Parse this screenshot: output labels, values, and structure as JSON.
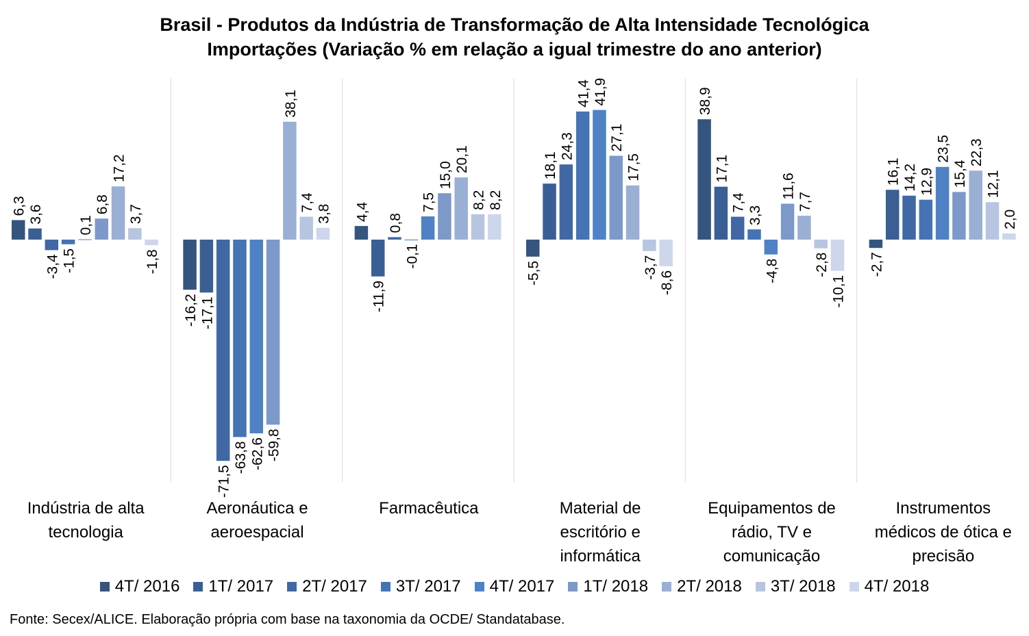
{
  "chart_data": {
    "type": "bar",
    "title": "Brasil - Produtos da Indústria de Transformação de Alta Intensidade Tecnológica",
    "subtitle": "Importações (Variação % em relação a igual trimestre do ano anterior)",
    "categories": [
      "Indústria de alta tecnologia",
      "Aeronáutica e aeroespacial",
      "Farmacêutica",
      "Material de escritório e informática",
      "Equipamentos de rádio, TV e comunicação",
      "Instrumentos médicos de ótica e precisão"
    ],
    "series": [
      {
        "name": "4T/ 2016",
        "color": "#35557F",
        "values": [
          6.3,
          -16.2,
          4.4,
          -5.5,
          38.9,
          -2.7
        ]
      },
      {
        "name": "1T/ 2017",
        "color": "#3A5F95",
        "values": [
          3.6,
          -17.1,
          -11.9,
          18.1,
          17.1,
          16.1
        ]
      },
      {
        "name": "2T/ 2017",
        "color": "#4168A4",
        "values": [
          -3.4,
          -71.5,
          0.8,
          24.3,
          7.4,
          14.2
        ]
      },
      {
        "name": "3T/ 2017",
        "color": "#4673B3",
        "values": [
          -1.5,
          -63.8,
          -0.1,
          41.4,
          3.3,
          12.9
        ]
      },
      {
        "name": "4T/ 2017",
        "color": "#4F82C4",
        "values": [
          0.1,
          -62.6,
          7.5,
          41.9,
          -4.8,
          23.5
        ]
      },
      {
        "name": "1T/ 2018",
        "color": "#7C99C9",
        "values": [
          6.8,
          -59.8,
          15.0,
          27.1,
          11.6,
          15.4
        ]
      },
      {
        "name": "2T/ 2018",
        "color": "#9AAFD4",
        "values": [
          17.2,
          38.1,
          20.1,
          17.5,
          7.7,
          22.3
        ]
      },
      {
        "name": "3T/ 2018",
        "color": "#B7C5E1",
        "values": [
          3.7,
          7.4,
          8.2,
          -3.7,
          -2.8,
          12.1
        ]
      },
      {
        "name": "4T/ 2018",
        "color": "#CDD6EA",
        "values": [
          -1.8,
          3.8,
          8.2,
          -8.6,
          -10.1,
          2.0
        ]
      }
    ],
    "ylim": [
      -75,
      52
    ],
    "grid": false,
    "legend": "bottom",
    "source": "Fonte: Secex/ALICE. Elaboração própria com base na taxonomia da OCDE/ Standatabase."
  }
}
